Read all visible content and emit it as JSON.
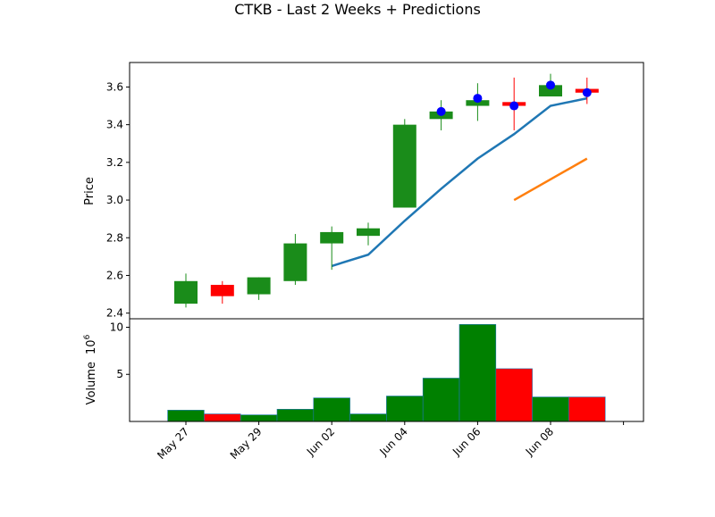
{
  "chart_data": {
    "type": "candlestick",
    "title": "CTKB - Last 2 Weeks + Predictions",
    "price_panel": {
      "ylabel": "Price",
      "ylim": [
        2.37,
        3.73
      ],
      "yticks": [
        "2.4",
        "2.6",
        "2.8",
        "3.0",
        "3.2",
        "3.4",
        "3.6"
      ],
      "ytick_values": [
        2.4,
        2.6,
        2.8,
        3.0,
        3.2,
        3.4,
        3.6
      ],
      "up_color": "#1a8c1a",
      "down_color": "#ff0000",
      "candles": [
        {
          "date": "May 27",
          "open": 2.45,
          "close": 2.57,
          "high": 2.61,
          "low": 2.43
        },
        {
          "date": "May 28",
          "open": 2.55,
          "close": 2.49,
          "high": 2.57,
          "low": 2.45
        },
        {
          "date": "May 29",
          "open": 2.5,
          "close": 2.59,
          "high": 2.59,
          "low": 2.47
        },
        {
          "date": "May 30",
          "open": 2.57,
          "close": 2.77,
          "high": 2.82,
          "low": 2.55
        },
        {
          "date": "Jun 02",
          "open": 2.77,
          "close": 2.83,
          "high": 2.86,
          "low": 2.63
        },
        {
          "date": "Jun 03",
          "open": 2.81,
          "close": 2.85,
          "high": 2.88,
          "low": 2.76
        },
        {
          "date": "Jun 04",
          "open": 2.96,
          "close": 3.4,
          "high": 3.43,
          "low": 2.96
        },
        {
          "date": "Jun 05",
          "open": 3.43,
          "close": 3.47,
          "high": 3.53,
          "low": 3.37
        },
        {
          "date": "Jun 06",
          "open": 3.5,
          "close": 3.53,
          "high": 3.62,
          "low": 3.42
        },
        {
          "date": "Jun 07",
          "open": 3.52,
          "close": 3.5,
          "high": 3.65,
          "low": 3.37
        },
        {
          "date": "Jun 08",
          "open": 3.55,
          "close": 3.61,
          "high": 3.67,
          "low": 3.55
        },
        {
          "date": "Jun 09",
          "open": 3.59,
          "close": 3.57,
          "high": 3.65,
          "low": 3.51
        }
      ],
      "markers": {
        "color": "#0000ff",
        "points": [
          {
            "date": "Jun 05",
            "value": 3.47
          },
          {
            "date": "Jun 06",
            "value": 3.54
          },
          {
            "date": "Jun 07",
            "value": 3.5
          },
          {
            "date": "Jun 08",
            "value": 3.61
          },
          {
            "date": "Jun 09",
            "value": 3.57
          }
        ]
      },
      "series": [
        {
          "color": "#1f77b4",
          "dates": [
            "Jun 02",
            "Jun 03",
            "Jun 04",
            "Jun 05",
            "Jun 06",
            "Jun 07",
            "Jun 08",
            "Jun 09"
          ],
          "values": [
            2.65,
            2.71,
            2.89,
            3.06,
            3.22,
            3.35,
            3.5,
            3.54
          ]
        },
        {
          "color": "#ff7f0e",
          "dates": [
            "Jun 07",
            "Jun 09"
          ],
          "values": [
            3.0,
            3.22
          ]
        }
      ]
    },
    "volume_panel": {
      "ylabel": "Volume",
      "scale_label": "10",
      "scale_exponent": "6",
      "ylim": [
        0,
        10.9
      ],
      "yticks": [
        "5",
        "10"
      ],
      "ytick_values": [
        5,
        10
      ],
      "bars": [
        {
          "date": "May 27",
          "value": 1.2,
          "color": "#008000"
        },
        {
          "date": "May 28",
          "value": 0.8,
          "color": "#ff0000"
        },
        {
          "date": "May 29",
          "value": 0.7,
          "color": "#008000"
        },
        {
          "date": "May 30",
          "value": 1.3,
          "color": "#008000"
        },
        {
          "date": "Jun 02",
          "value": 2.5,
          "color": "#008000"
        },
        {
          "date": "Jun 03",
          "value": 0.8,
          "color": "#008000"
        },
        {
          "date": "Jun 04",
          "value": 2.7,
          "color": "#008000"
        },
        {
          "date": "Jun 05",
          "value": 4.6,
          "color": "#008000"
        },
        {
          "date": "Jun 06",
          "value": 10.3,
          "color": "#008000"
        },
        {
          "date": "Jun 07",
          "value": 5.6,
          "color": "#ff0000"
        },
        {
          "date": "Jun 08",
          "value": 2.6,
          "color": "#008000"
        },
        {
          "date": "Jun 09",
          "value": 2.6,
          "color": "#ff0000"
        }
      ]
    },
    "x_axis": {
      "tick_labels": [
        "May 27",
        "May 29",
        "Jun 02",
        "Jun 04",
        "Jun 06",
        "Jun 08",
        ""
      ],
      "tick_dates": [
        "May 27",
        "May 29",
        "Jun 02",
        "Jun 04",
        "Jun 06",
        "Jun 08",
        "Jun 10"
      ]
    }
  }
}
